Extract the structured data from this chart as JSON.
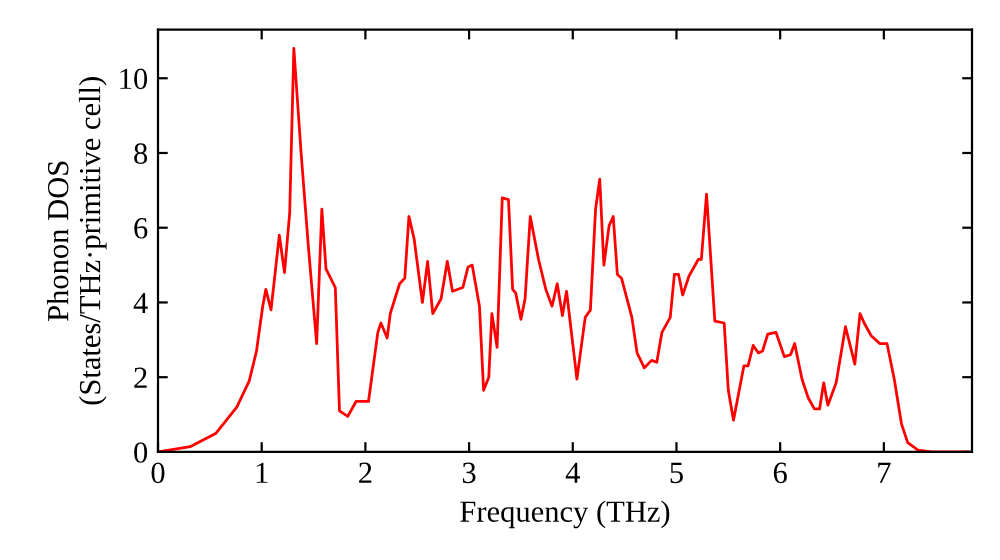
{
  "chart_data": {
    "type": "line",
    "xlabel": "Frequency (THz)",
    "ylabel": "Phonon DOS\n(States/THz·primitive cell)",
    "xlim": [
      0,
      7.85
    ],
    "ylim": [
      0,
      11.3
    ],
    "xticks": [
      0,
      1,
      2,
      3,
      4,
      5,
      6,
      7
    ],
    "yticks": [
      0,
      2,
      4,
      6,
      8,
      10
    ],
    "grid": false,
    "marker": "none",
    "line_style": "solid",
    "series": [
      {
        "color": "#ff0000",
        "x": [
          0,
          0.31,
          0.56,
          0.76,
          0.88,
          0.95,
          1.01,
          1.04,
          1.09,
          1.17,
          1.22,
          1.27,
          1.31,
          1.38,
          1.45,
          1.53,
          1.58,
          1.62,
          1.71,
          1.75,
          1.83,
          1.91,
          2.03,
          2.12,
          2.15,
          2.21,
          2.24,
          2.33,
          2.38,
          2.42,
          2.47,
          2.55,
          2.6,
          2.65,
          2.73,
          2.79,
          2.84,
          2.94,
          2.99,
          3.03,
          3.1,
          3.14,
          3.19,
          3.22,
          3.27,
          3.32,
          3.38,
          3.42,
          3.45,
          3.5,
          3.54,
          3.59,
          3.67,
          3.74,
          3.8,
          3.85,
          3.9,
          3.94,
          4.04,
          4.12,
          4.17,
          4.22,
          4.26,
          4.3,
          4.35,
          4.39,
          4.43,
          4.47,
          4.57,
          4.62,
          4.69,
          4.76,
          4.81,
          4.86,
          4.94,
          4.98,
          5.02,
          5.06,
          5.12,
          5.21,
          5.24,
          5.29,
          5.37,
          5.46,
          5.5,
          5.55,
          5.65,
          5.69,
          5.74,
          5.79,
          5.83,
          5.88,
          5.96,
          6.04,
          6.1,
          6.14,
          6.21,
          6.27,
          6.33,
          6.38,
          6.42,
          6.46,
          6.54,
          6.63,
          6.72,
          6.77,
          6.81,
          6.88,
          6.96,
          7.03,
          7.1,
          7.17,
          7.23,
          7.33,
          7.46,
          7.81
        ],
        "values": [
          0,
          0.14,
          0.5,
          1.2,
          1.9,
          2.7,
          3.9,
          4.35,
          3.8,
          5.8,
          4.8,
          6.4,
          10.8,
          8.0,
          5.5,
          2.9,
          6.5,
          4.9,
          4.4,
          1.1,
          0.95,
          1.35,
          1.35,
          3.2,
          3.45,
          3.05,
          3.7,
          4.5,
          4.65,
          6.3,
          5.7,
          4.0,
          5.1,
          3.7,
          4.1,
          5.1,
          4.3,
          4.4,
          4.95,
          5.0,
          3.9,
          1.65,
          2.0,
          3.7,
          2.8,
          6.8,
          6.75,
          4.35,
          4.25,
          3.55,
          4.1,
          6.3,
          5.15,
          4.35,
          3.9,
          4.5,
          3.65,
          4.3,
          1.95,
          3.6,
          3.8,
          6.5,
          7.3,
          5.0,
          6.05,
          6.3,
          4.75,
          4.65,
          3.6,
          2.65,
          2.25,
          2.45,
          2.4,
          3.2,
          3.6,
          4.75,
          4.75,
          4.2,
          4.7,
          5.15,
          5.15,
          6.9,
          3.5,
          3.45,
          1.65,
          0.85,
          2.3,
          2.3,
          2.85,
          2.65,
          2.7,
          3.15,
          3.2,
          2.55,
          2.6,
          2.9,
          1.95,
          1.45,
          1.15,
          1.15,
          1.85,
          1.25,
          1.85,
          3.35,
          2.35,
          3.7,
          3.45,
          3.1,
          2.9,
          2.9,
          1.95,
          0.75,
          0.25,
          0.05,
          0,
          0
        ]
      }
    ]
  }
}
